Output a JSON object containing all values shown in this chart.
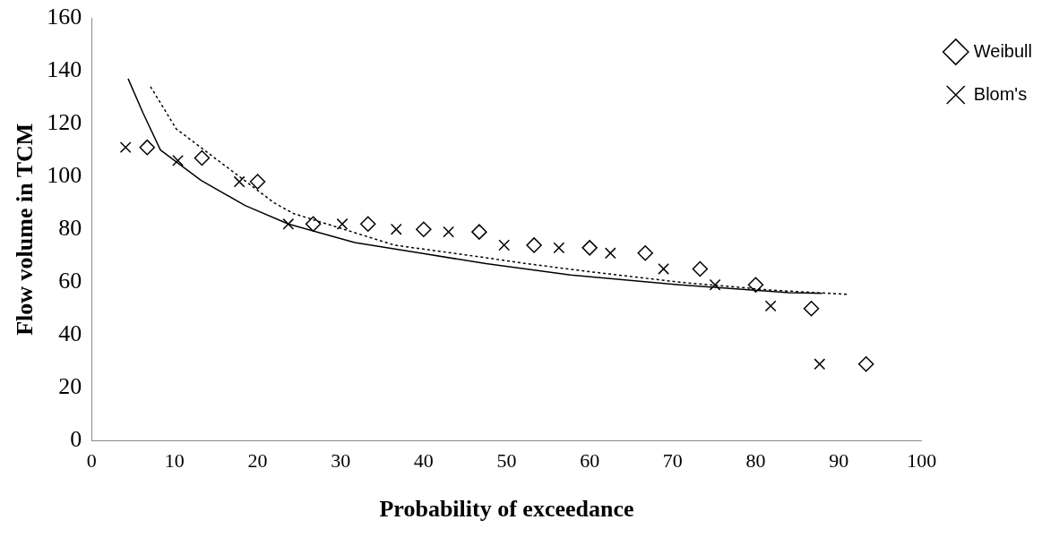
{
  "chart_data": {
    "type": "scatter",
    "xlabel": "Probability of exceedance",
    "ylabel": "Flow volume in TCM",
    "xlim": [
      0,
      100
    ],
    "xticks": [
      0,
      10,
      20,
      30,
      40,
      50,
      60,
      70,
      80,
      90,
      100
    ],
    "ylim": [
      0,
      160
    ],
    "yticks": [
      0,
      20,
      40,
      60,
      80,
      100,
      120,
      140,
      160
    ],
    "grid": false,
    "legend": "top right",
    "series": [
      {
        "name": "Weibull",
        "color": "#000000",
        "marker": "diamond",
        "x": [
          6.7,
          13.3,
          20,
          26.7,
          33.3,
          40,
          46.7,
          53.3,
          60,
          66.7,
          73.3,
          80,
          86.7,
          93.3
        ],
        "values": [
          111,
          107,
          98,
          82,
          82,
          80,
          79,
          74,
          73,
          71,
          65,
          59,
          50,
          29
        ]
      },
      {
        "name": "Blom's",
        "color": "#000000",
        "marker": "cross",
        "x": [
          4.1,
          10.4,
          17.8,
          23.7,
          30.2,
          36.7,
          43,
          49.7,
          56.3,
          62.5,
          68.9,
          75.1,
          81.8,
          87.7
        ],
        "values": [
          111,
          106,
          98,
          82,
          82,
          80,
          79,
          74,
          73,
          71,
          65,
          59,
          51,
          29
        ]
      },
      {
        "type": "line",
        "color": "#000000",
        "marker": "none",
        "line_style": "solid",
        "x": [
          4.4,
          6.2,
          8.3,
          13.2,
          18.5,
          23.7,
          31.7,
          39.6,
          47.5,
          57.7,
          70.8,
          84,
          88
        ],
        "values": [
          137,
          124,
          110,
          98.5,
          89,
          82,
          75,
          71,
          67,
          62.7,
          59,
          56,
          55.8
        ]
      },
      {
        "type": "line",
        "color": "#000000",
        "marker": "none",
        "line_style": "dotted",
        "x": [
          7.1,
          10.2,
          22,
          24.3,
          36.5,
          46.7,
          52.4,
          59.9,
          70.8,
          81.8,
          91
        ],
        "values": [
          134,
          118,
          90,
          86,
          74,
          69.6,
          67,
          64,
          60,
          57,
          55.4
        ]
      }
    ]
  }
}
